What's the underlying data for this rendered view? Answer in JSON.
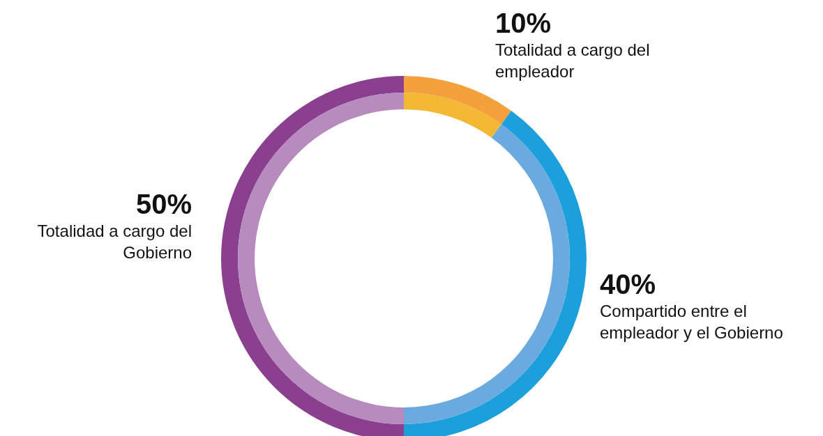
{
  "chart_data": {
    "type": "donut",
    "categories": [
      "Totalidad a cargo del empleador",
      "Compartido entre el empleador y el Gobierno",
      "Totalidad a cargo del Gobierno"
    ],
    "series": [
      {
        "values": [
          10,
          40,
          50
        ],
        "colors": [
          "#f4a03c",
          "#1ba0dc",
          "#8b3f8f"
        ],
        "value_labels": [
          "10%",
          "40%",
          "50%"
        ]
      },
      {
        "values": [
          10,
          40,
          50
        ],
        "colors": [
          "#f3b934",
          "#6aaade",
          "#b88bbf"
        ]
      }
    ]
  }
}
